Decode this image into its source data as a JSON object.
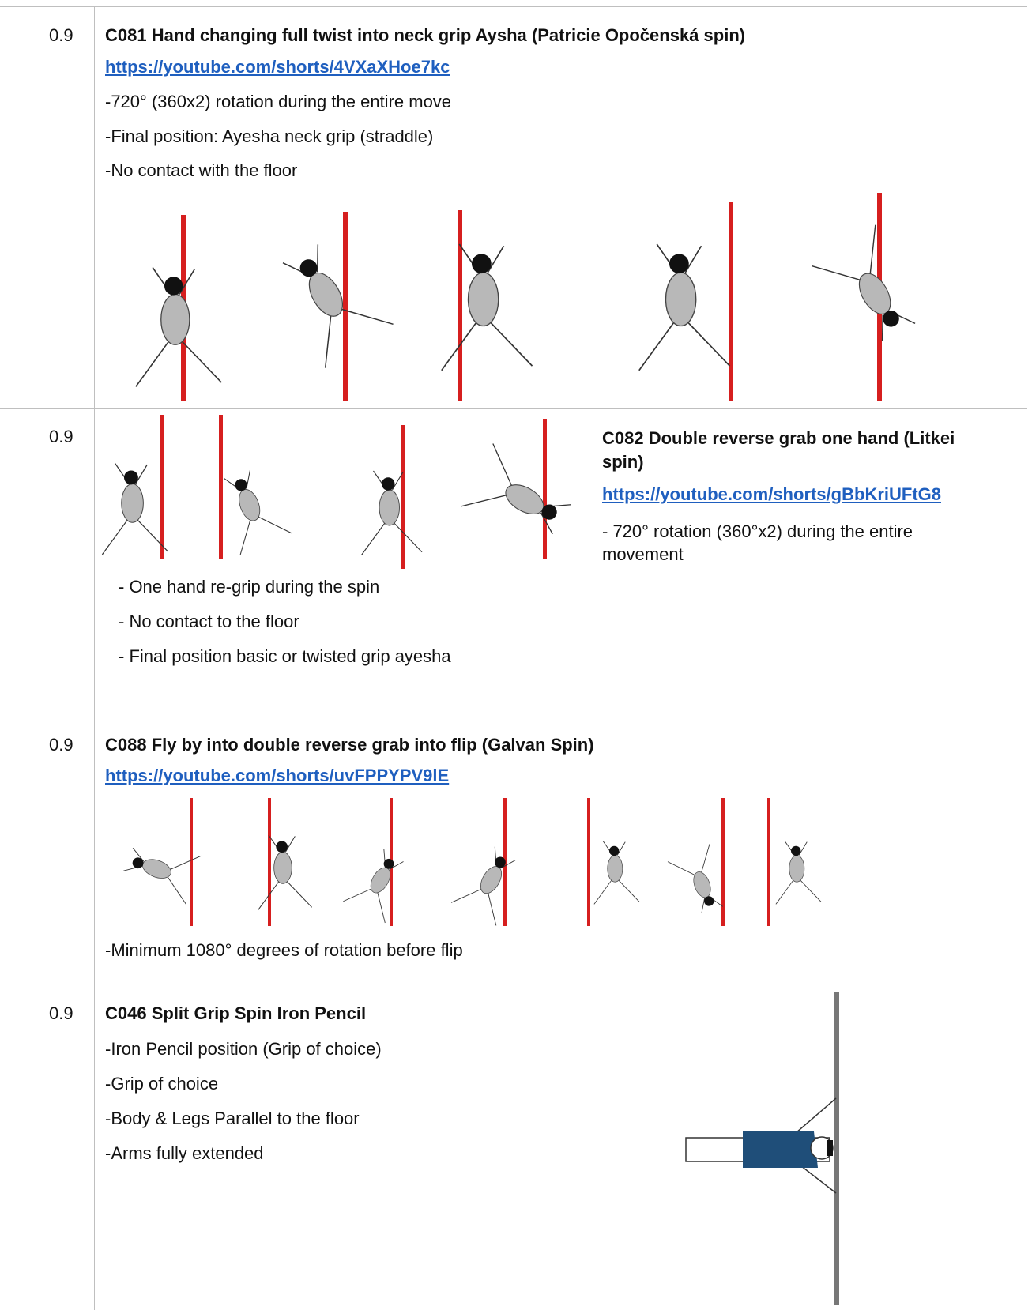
{
  "rows": [
    {
      "score": "0.9",
      "title": "C081 Hand changing full twist into neck grip Aysha (Patricie Opočenská spin)",
      "link": "https://youtube.com/shorts/4VXaXHoe7kc",
      "lines": [
        "-720° (360x2) rotation during the entire move",
        "-Final position: Ayesha neck grip (straddle)",
        "-No contact with the floor"
      ]
    },
    {
      "score": "0.9",
      "title": "C082 Double reverse grab one hand (Litkei spin)",
      "link": "https://youtube.com/shorts/gBbKriUFtG8",
      "side_lines": [
        "- 720° rotation (360°x2) during the entire movement"
      ],
      "lines": [
        "- One hand re-grip during the spin",
        "- No contact to the floor",
        "- Final position basic or twisted grip ayesha"
      ]
    },
    {
      "score": "0.9",
      "title": "C088 Fly by into double reverse grab into flip (Galvan Spin)",
      "link": "https://youtube.com/shorts/uvFPPYPV9lE",
      "lines": [
        "-Minimum 1080° degrees of rotation before flip"
      ]
    },
    {
      "score": "0.9",
      "title": "C046 Split Grip Spin Iron Pencil",
      "lines": [
        "-Iron Pencil position (Grip of choice)",
        "-Grip of choice",
        "-Body & Legs Parallel to the floor",
        "-Arms fully extended"
      ]
    }
  ]
}
